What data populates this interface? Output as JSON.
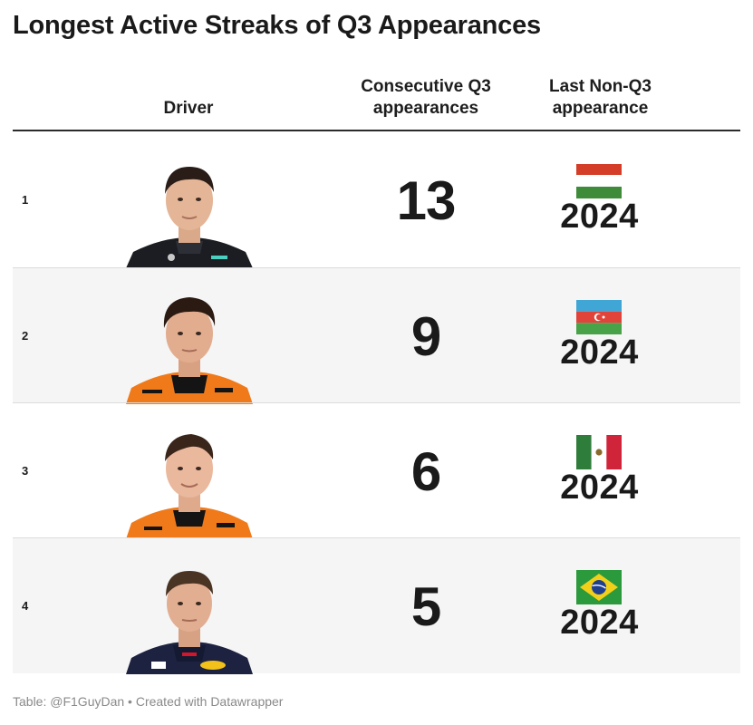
{
  "title": "Longest Active Streaks of Q3 Appearances",
  "chart_data": {
    "type": "table",
    "title": "Longest Active Streaks of Q3 Appearances",
    "columns": [
      "Driver",
      "Consecutive Q3 appearances",
      "Last Non-Q3 appearance"
    ],
    "rows": [
      {
        "rank": "1",
        "streak": 13,
        "last_flag": "Hungary",
        "last_year": "2024"
      },
      {
        "rank": "2",
        "streak": 9,
        "last_flag": "Azerbaijan",
        "last_year": "2024"
      },
      {
        "rank": "3",
        "streak": 6,
        "last_flag": "Mexico",
        "last_year": "2024"
      },
      {
        "rank": "4",
        "streak": 5,
        "last_flag": "Brazil",
        "last_year": "2024"
      }
    ]
  },
  "headers": {
    "driver": "Driver",
    "streak_line1": "Consecutive Q3",
    "streak_line2": "appearances",
    "last_line1": "Last Non-Q3",
    "last_line2": "appearance"
  },
  "rows": [
    {
      "rank": "1",
      "streak": "13",
      "year": "2024",
      "suit_color": "#1b1d22",
      "accent": "#4ad0c0",
      "flag_icon": "hungary-flag-icon"
    },
    {
      "rank": "2",
      "streak": "9",
      "year": "2024",
      "suit_color": "#f07a1a",
      "accent": "#141414",
      "flag_icon": "azerbaijan-flag-icon"
    },
    {
      "rank": "3",
      "streak": "6",
      "year": "2024",
      "suit_color": "#f07a1a",
      "accent": "#141414",
      "flag_icon": "mexico-flag-icon"
    },
    {
      "rank": "4",
      "streak": "5",
      "year": "2024",
      "suit_color": "#1c2240",
      "accent": "#d4162c",
      "flag_icon": "brazil-flag-icon"
    }
  ],
  "footer": "Table: @F1GuyDan • Created with Datawrapper"
}
